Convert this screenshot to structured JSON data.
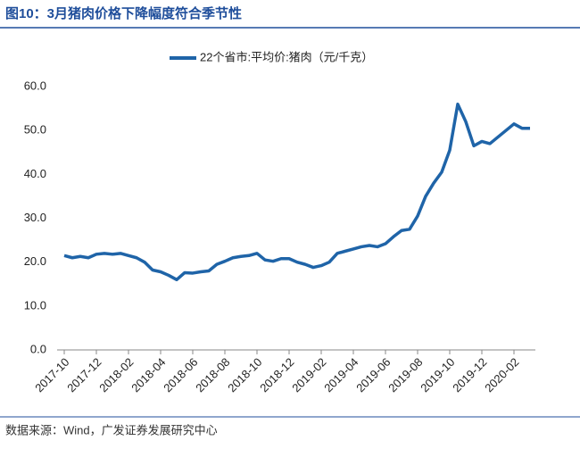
{
  "chart_data": {
    "type": "line",
    "title": "图10：3月猪肉价格下降幅度符合季节性",
    "source": "数据来源：Wind，广发证券发展研究中心",
    "categories": [
      "2017-10",
      null,
      null,
      null,
      "2017-12",
      null,
      null,
      null,
      "2018-02",
      null,
      null,
      null,
      "2018-04",
      null,
      null,
      null,
      "2018-06",
      null,
      null,
      null,
      "2018-08",
      null,
      null,
      null,
      "2018-10",
      null,
      null,
      null,
      "2018-12",
      null,
      null,
      null,
      "2019-02",
      null,
      null,
      null,
      "2019-04",
      null,
      null,
      null,
      "2019-06",
      null,
      null,
      null,
      "2019-08",
      null,
      null,
      null,
      "2019-10",
      null,
      null,
      null,
      "2019-12",
      null,
      null,
      null,
      "2020-02",
      null,
      null
    ],
    "series": [
      {
        "name": "22个省市:平均价:猪肉（元/千克）",
        "color": "#1f64a8",
        "values": [
          21.5,
          21.0,
          21.3,
          21.0,
          21.8,
          22.0,
          21.8,
          22.0,
          21.5,
          21.0,
          20.0,
          18.2,
          17.8,
          17.0,
          16.0,
          17.6,
          17.5,
          17.8,
          18.0,
          19.5,
          20.2,
          21.0,
          21.3,
          21.5,
          22.0,
          20.5,
          20.2,
          20.8,
          20.8,
          20.0,
          19.5,
          18.8,
          19.2,
          20.0,
          22.0,
          22.5,
          23.0,
          23.5,
          23.8,
          23.5,
          24.2,
          25.8,
          27.2,
          27.5,
          30.5,
          35.0,
          38.0,
          40.5,
          45.5,
          56.0,
          52.0,
          46.5,
          47.5,
          47.0,
          48.5,
          50.0,
          51.5,
          50.5,
          50.5
        ]
      }
    ],
    "ylim": [
      0,
      60
    ],
    "yticks": [
      {
        "value": 0,
        "label": "0.0"
      },
      {
        "value": 10,
        "label": "10.0"
      },
      {
        "value": 20,
        "label": "20.0"
      },
      {
        "value": 30,
        "label": "30.0"
      },
      {
        "value": 40,
        "label": "40.0"
      },
      {
        "value": 50,
        "label": "50.0"
      },
      {
        "value": 60,
        "label": "60.0"
      }
    ],
    "grid": false,
    "legend": "top"
  }
}
